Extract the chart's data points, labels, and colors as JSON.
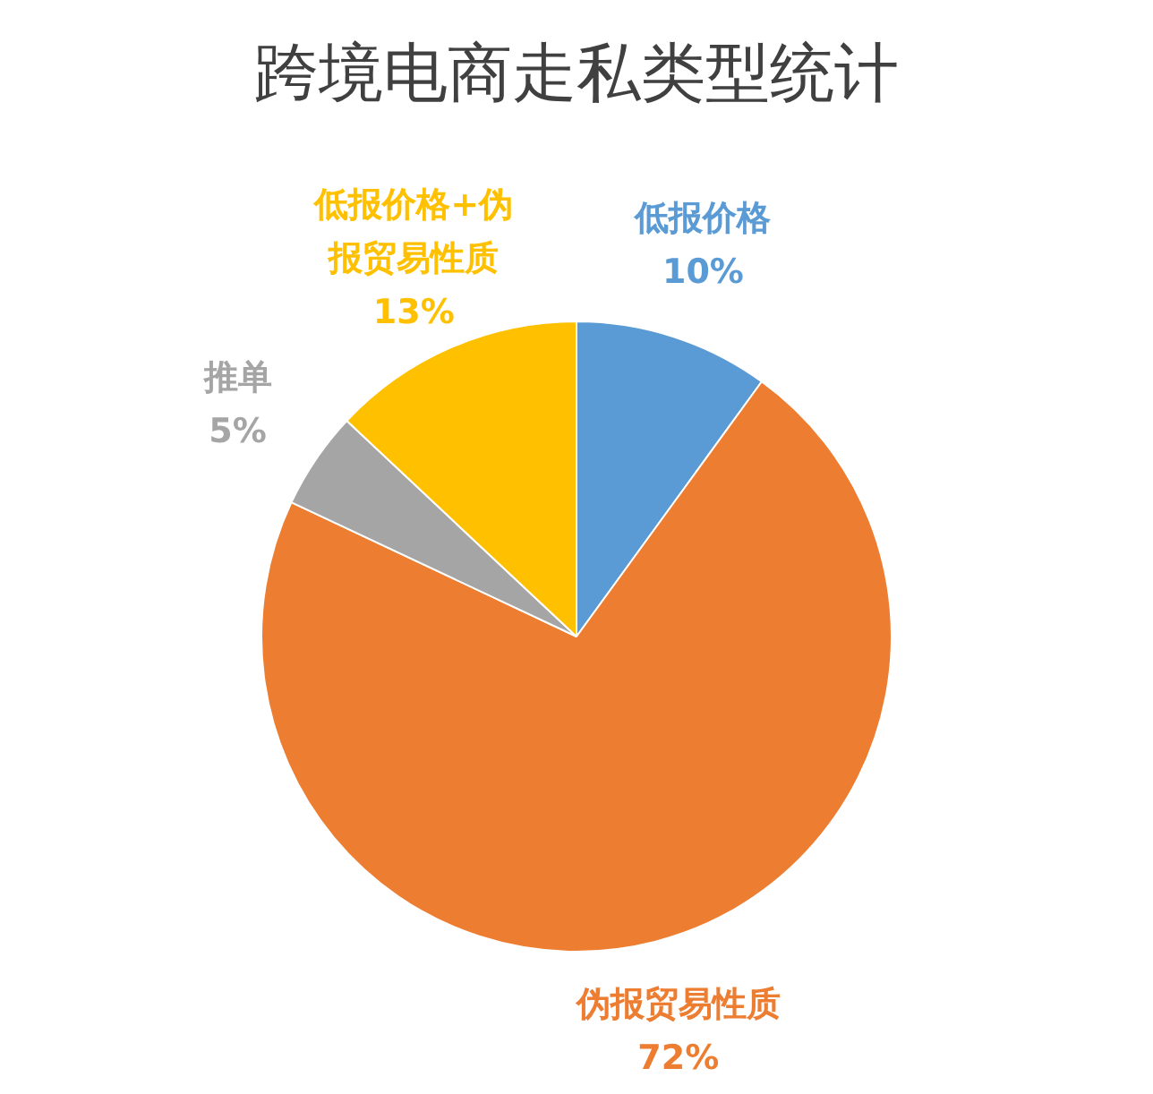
{
  "chart_data": {
    "type": "pie",
    "title": "跨境电商走私类型统计",
    "categories": [
      "低报价格",
      "伪报贸易性质",
      "推单",
      "低报价格+伪报贸易性质"
    ],
    "values": [
      10,
      72,
      5,
      13
    ],
    "value_labels": [
      "10%",
      "72%",
      "5%",
      "13%"
    ],
    "colors": [
      "#5b9bd5",
      "#ed7d31",
      "#a5a5a5",
      "#ffc000"
    ],
    "legend": false
  }
}
